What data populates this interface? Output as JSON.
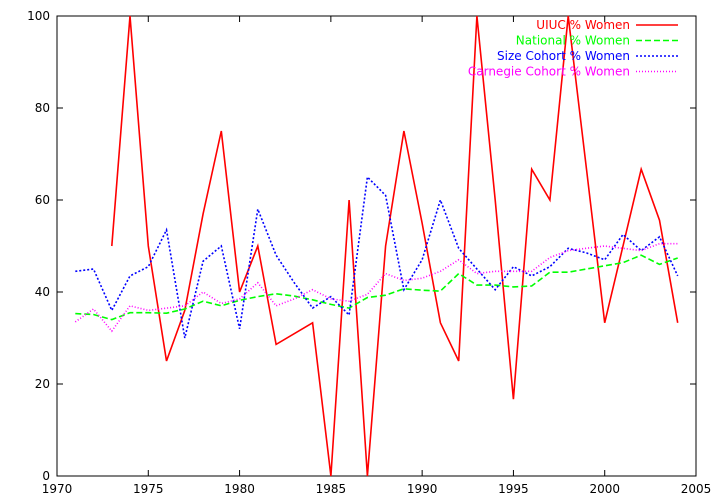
{
  "chart_data": {
    "type": "line",
    "title": "",
    "xlabel": "",
    "ylabel": "",
    "xlim": [
      1970,
      2005
    ],
    "ylim": [
      0,
      100
    ],
    "xticks": [
      1970,
      1975,
      1980,
      1985,
      1990,
      1995,
      2000,
      2005
    ],
    "yticks": [
      0,
      20,
      40,
      60,
      80,
      100
    ],
    "grid": false,
    "legend_position": "top-right",
    "series": [
      {
        "name": "UIUC % Women",
        "color": "#ff0000",
        "style": "solid",
        "points": [
          [
            1973,
            50
          ],
          [
            1974,
            100
          ],
          [
            1975,
            50
          ],
          [
            1976,
            25
          ],
          [
            1977,
            36
          ],
          [
            1978,
            57
          ],
          [
            1979,
            75
          ],
          [
            1980,
            40
          ],
          [
            1981,
            50
          ],
          [
            1982,
            28.6
          ],
          [
            1984,
            33.3
          ],
          [
            1985,
            0
          ],
          [
            1986,
            60
          ],
          [
            1987,
            0
          ],
          [
            1988,
            50
          ],
          [
            1989,
            75
          ],
          [
            1990,
            55
          ],
          [
            1991,
            33.3
          ],
          [
            1992,
            25
          ],
          [
            1993,
            100
          ],
          [
            1994,
            60
          ],
          [
            1995,
            16.7
          ],
          [
            1996,
            66.7
          ],
          [
            1997,
            60
          ],
          [
            1998,
            100
          ],
          [
            1999,
            66.7
          ],
          [
            2000,
            33.3
          ],
          [
            2001,
            50
          ],
          [
            2002,
            66.7
          ],
          [
            2003,
            55.6
          ],
          [
            2004,
            33.3
          ]
        ]
      },
      {
        "name": "National % Women",
        "color": "#00ff00",
        "style": "dashed",
        "points": [
          [
            1971,
            35.3
          ],
          [
            1972,
            35.1
          ],
          [
            1973,
            34.0
          ],
          [
            1974,
            35.5
          ],
          [
            1975,
            35.5
          ],
          [
            1976,
            35.4
          ],
          [
            1977,
            36.3
          ],
          [
            1978,
            38.0
          ],
          [
            1979,
            37.0
          ],
          [
            1980,
            38.2
          ],
          [
            1981,
            39.0
          ],
          [
            1982,
            39.6
          ],
          [
            1983,
            39.1
          ],
          [
            1984,
            38.3
          ],
          [
            1985,
            37.3
          ],
          [
            1986,
            36.5
          ],
          [
            1987,
            38.8
          ],
          [
            1988,
            39.3
          ],
          [
            1989,
            40.7
          ],
          [
            1990,
            40.4
          ],
          [
            1991,
            40.2
          ],
          [
            1992,
            44.0
          ],
          [
            1993,
            41.5
          ],
          [
            1994,
            41.5
          ],
          [
            1995,
            41.1
          ],
          [
            1996,
            41.3
          ],
          [
            1997,
            44.3
          ],
          [
            1998,
            44.3
          ],
          [
            1999,
            45.0
          ],
          [
            2000,
            45.7
          ],
          [
            2001,
            46.4
          ],
          [
            2002,
            48.0
          ],
          [
            2003,
            46.0
          ],
          [
            2004,
            47.4
          ]
        ]
      },
      {
        "name": "Size Cohort % Women",
        "color": "#0000ff",
        "style": "dotted",
        "points": [
          [
            1971,
            44.5
          ],
          [
            1972,
            45.0
          ],
          [
            1973,
            36.0
          ],
          [
            1974,
            43.5
          ],
          [
            1975,
            45.5
          ],
          [
            1976,
            53.5
          ],
          [
            1977,
            30.0
          ],
          [
            1978,
            46.7
          ],
          [
            1979,
            50.0
          ],
          [
            1980,
            32.0
          ],
          [
            1981,
            58.0
          ],
          [
            1982,
            48.0
          ],
          [
            1983,
            42.0
          ],
          [
            1984,
            36.5
          ],
          [
            1985,
            39.0
          ],
          [
            1986,
            35.0
          ],
          [
            1987,
            65.0
          ],
          [
            1988,
            61.0
          ],
          [
            1989,
            40.5
          ],
          [
            1990,
            47.0
          ],
          [
            1991,
            60.0
          ],
          [
            1992,
            49.5
          ],
          [
            1993,
            45.0
          ],
          [
            1994,
            40.5
          ],
          [
            1995,
            45.5
          ],
          [
            1996,
            43.5
          ],
          [
            1997,
            45.5
          ],
          [
            1998,
            49.5
          ],
          [
            1999,
            48.5
          ],
          [
            2000,
            47.0
          ],
          [
            2001,
            52.5
          ],
          [
            2002,
            49.0
          ],
          [
            2003,
            52.0
          ],
          [
            2004,
            43.5
          ]
        ]
      },
      {
        "name": "Carnegie Cohort % Women",
        "color": "#ff00ff",
        "style": "fine-dotted",
        "points": [
          [
            1971,
            33.5
          ],
          [
            1972,
            36.3
          ],
          [
            1973,
            31.5
          ],
          [
            1974,
            37.0
          ],
          [
            1975,
            36.0
          ],
          [
            1976,
            36.5
          ],
          [
            1977,
            37.0
          ],
          [
            1978,
            40.0
          ],
          [
            1979,
            37.5
          ],
          [
            1980,
            38.5
          ],
          [
            1981,
            42.0
          ],
          [
            1982,
            37.0
          ],
          [
            1983,
            38.5
          ],
          [
            1984,
            40.5
          ],
          [
            1985,
            38.5
          ],
          [
            1986,
            38.0
          ],
          [
            1987,
            39.5
          ],
          [
            1988,
            44.0
          ],
          [
            1989,
            42.5
          ],
          [
            1990,
            43.0
          ],
          [
            1991,
            44.5
          ],
          [
            1992,
            47.0
          ],
          [
            1993,
            44.0
          ],
          [
            1994,
            44.5
          ],
          [
            1995,
            44.5
          ],
          [
            1996,
            44.5
          ],
          [
            1997,
            47.5
          ],
          [
            1998,
            49.0
          ],
          [
            1999,
            49.5
          ],
          [
            2000,
            50.0
          ],
          [
            2001,
            49.5
          ],
          [
            2002,
            49.0
          ],
          [
            2003,
            50.5
          ],
          [
            2004,
            50.5
          ]
        ]
      }
    ]
  }
}
